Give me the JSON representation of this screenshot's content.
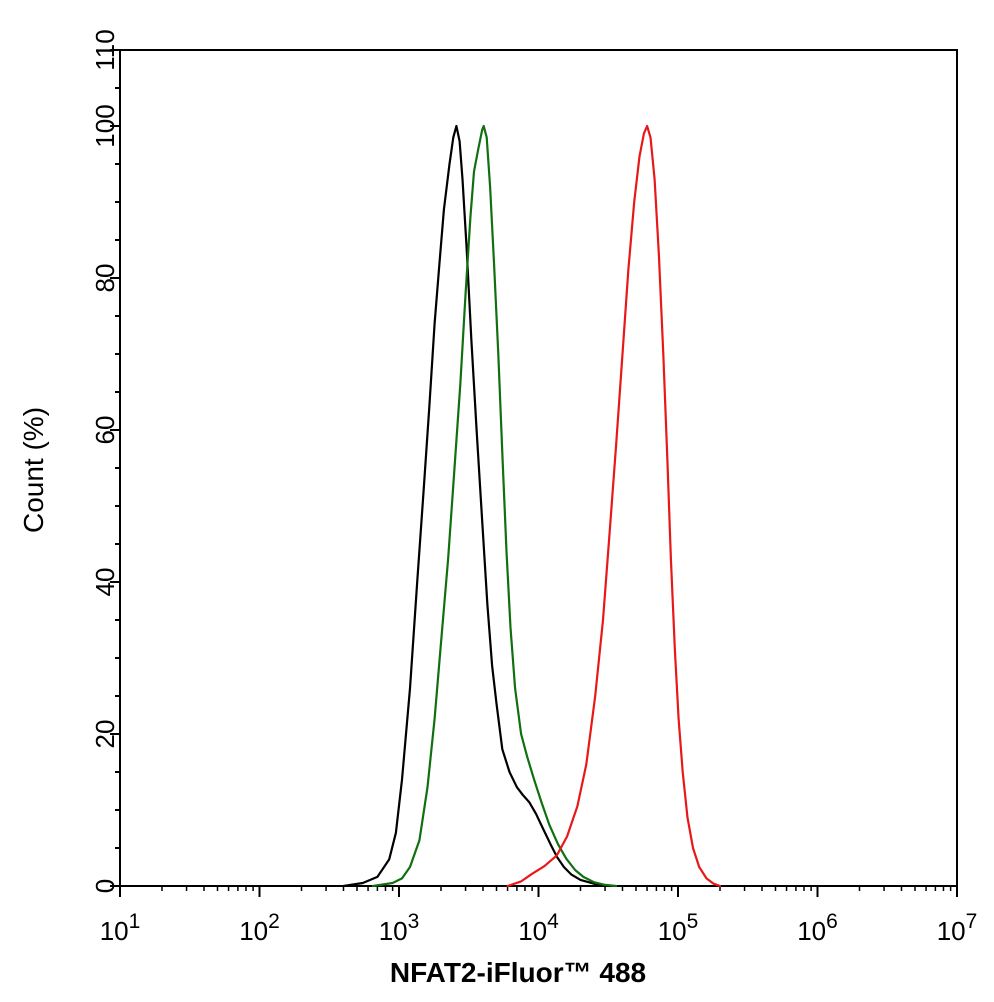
{
  "chart_data": {
    "type": "line",
    "title": "",
    "xlabel": "NFAT2-iFluor™ 488",
    "ylabel": "Count  (%)",
    "xscale": "log",
    "xlim": [
      10,
      10000000
    ],
    "ylim": [
      0,
      110
    ],
    "grid": false,
    "legend": "none",
    "x_ticks": [
      {
        "value": 10,
        "base": "10",
        "exp": "1"
      },
      {
        "value": 100,
        "base": "10",
        "exp": "2"
      },
      {
        "value": 1000,
        "base": "10",
        "exp": "3"
      },
      {
        "value": 10000,
        "base": "10",
        "exp": "4"
      },
      {
        "value": 100000,
        "base": "10",
        "exp": "5"
      },
      {
        "value": 1000000,
        "base": "10",
        "exp": "6"
      },
      {
        "value": 10000000,
        "base": "10",
        "exp": "7"
      }
    ],
    "y_ticks": [
      {
        "value": 0,
        "label": "0"
      },
      {
        "value": 20,
        "label": "20"
      },
      {
        "value": 40,
        "label": "40"
      },
      {
        "value": 60,
        "label": "60"
      },
      {
        "value": 80,
        "label": "80"
      },
      {
        "value": 100,
        "label": "100"
      },
      {
        "value": 110,
        "label": "110"
      }
    ],
    "series": [
      {
        "color": "#000000",
        "points": [
          [
            400,
            0
          ],
          [
            550,
            0.4
          ],
          [
            700,
            1.2
          ],
          [
            850,
            3.5
          ],
          [
            950,
            7
          ],
          [
            1050,
            14
          ],
          [
            1200,
            26
          ],
          [
            1350,
            40
          ],
          [
            1500,
            52
          ],
          [
            1650,
            63
          ],
          [
            1800,
            74
          ],
          [
            1950,
            82
          ],
          [
            2100,
            89
          ],
          [
            2300,
            95
          ],
          [
            2450,
            98.5
          ],
          [
            2580,
            100
          ],
          [
            2720,
            98
          ],
          [
            2850,
            93
          ],
          [
            3050,
            84
          ],
          [
            3300,
            72
          ],
          [
            3600,
            60
          ],
          [
            3950,
            48
          ],
          [
            4300,
            37
          ],
          [
            4650,
            29
          ],
          [
            5000,
            24
          ],
          [
            5500,
            18
          ],
          [
            6200,
            15
          ],
          [
            7000,
            13
          ],
          [
            7700,
            12
          ],
          [
            8600,
            11
          ],
          [
            9600,
            9.5
          ],
          [
            10800,
            7.5
          ],
          [
            12200,
            5.5
          ],
          [
            13600,
            3.8
          ],
          [
            15200,
            2.5
          ],
          [
            17200,
            1.5
          ],
          [
            20000,
            0.8
          ],
          [
            25000,
            0.3
          ],
          [
            30000,
            0
          ]
        ]
      },
      {
        "color": "#107010",
        "points": [
          [
            650,
            0
          ],
          [
            900,
            0.4
          ],
          [
            1050,
            1
          ],
          [
            1200,
            2.5
          ],
          [
            1400,
            6
          ],
          [
            1600,
            13
          ],
          [
            1800,
            22
          ],
          [
            2000,
            32
          ],
          [
            2250,
            43
          ],
          [
            2500,
            55
          ],
          [
            2750,
            66
          ],
          [
            3000,
            78
          ],
          [
            3250,
            88
          ],
          [
            3450,
            94
          ],
          [
            3700,
            97
          ],
          [
            3950,
            99.5
          ],
          [
            4050,
            100
          ],
          [
            4250,
            98.5
          ],
          [
            4500,
            92
          ],
          [
            4800,
            82
          ],
          [
            5150,
            70
          ],
          [
            5500,
            57
          ],
          [
            5900,
            44
          ],
          [
            6300,
            34
          ],
          [
            6800,
            26
          ],
          [
            7500,
            20
          ],
          [
            8300,
            17
          ],
          [
            9300,
            14
          ],
          [
            10500,
            11
          ],
          [
            12000,
            8
          ],
          [
            13800,
            5.5
          ],
          [
            15800,
            3.6
          ],
          [
            18300,
            2.1
          ],
          [
            21000,
            1.2
          ],
          [
            25000,
            0.5
          ],
          [
            30000,
            0.15
          ],
          [
            36000,
            0
          ]
        ]
      },
      {
        "color": "#e81818",
        "points": [
          [
            6000,
            0
          ],
          [
            7500,
            0.6
          ],
          [
            9000,
            1.6
          ],
          [
            11000,
            2.6
          ],
          [
            13500,
            4
          ],
          [
            16000,
            6.5
          ],
          [
            19000,
            10.5
          ],
          [
            22000,
            16
          ],
          [
            25500,
            25
          ],
          [
            29000,
            35
          ],
          [
            32500,
            47
          ],
          [
            36000,
            58
          ],
          [
            40000,
            70
          ],
          [
            44000,
            81
          ],
          [
            48500,
            90
          ],
          [
            53000,
            96
          ],
          [
            57000,
            99
          ],
          [
            60000,
            100
          ],
          [
            63500,
            98.5
          ],
          [
            68000,
            93
          ],
          [
            73000,
            83
          ],
          [
            78500,
            70
          ],
          [
            84000,
            56
          ],
          [
            89000,
            43
          ],
          [
            95000,
            31
          ],
          [
            101000,
            22
          ],
          [
            108000,
            15
          ],
          [
            117000,
            9
          ],
          [
            128000,
            5
          ],
          [
            142000,
            2.5
          ],
          [
            160000,
            1
          ],
          [
            180000,
            0.3
          ],
          [
            200000,
            0
          ]
        ]
      }
    ]
  }
}
